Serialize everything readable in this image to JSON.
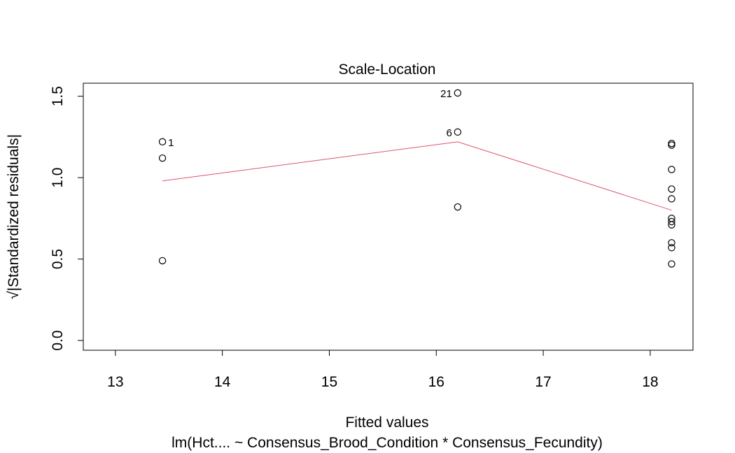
{
  "chart_data": {
    "type": "scatter",
    "title": "Scale-Location",
    "xlabel": "Fitted values",
    "subtitle": "lm(Hct.... ~ Consensus_Brood_Condition * Consensus_Fecundity)",
    "ylabel": "√|Standardized residuals|",
    "xlim": [
      12.7,
      18.4
    ],
    "ylim": [
      -0.06,
      1.58
    ],
    "x_ticks": [
      13,
      14,
      15,
      16,
      17,
      18
    ],
    "y_ticks": [
      0.0,
      0.5,
      1.0,
      1.5
    ],
    "y_tick_labels": [
      "0.0",
      "0.5",
      "1.0",
      "1.5"
    ],
    "points": [
      {
        "x": 13.44,
        "y": 1.22,
        "label": "1"
      },
      {
        "x": 13.44,
        "y": 1.12
      },
      {
        "x": 13.44,
        "y": 0.49
      },
      {
        "x": 16.2,
        "y": 1.52,
        "label": "21"
      },
      {
        "x": 16.2,
        "y": 1.28,
        "label": "6"
      },
      {
        "x": 16.2,
        "y": 0.82
      },
      {
        "x": 18.2,
        "y": 1.21
      },
      {
        "x": 18.2,
        "y": 1.2
      },
      {
        "x": 18.2,
        "y": 1.05
      },
      {
        "x": 18.2,
        "y": 0.93
      },
      {
        "x": 18.2,
        "y": 0.87
      },
      {
        "x": 18.2,
        "y": 0.75
      },
      {
        "x": 18.2,
        "y": 0.73
      },
      {
        "x": 18.2,
        "y": 0.71
      },
      {
        "x": 18.2,
        "y": 0.6
      },
      {
        "x": 18.2,
        "y": 0.57
      },
      {
        "x": 18.2,
        "y": 0.47
      }
    ],
    "smoother": {
      "color": "#DF536B",
      "x": [
        13.44,
        16.2,
        18.2
      ],
      "y": [
        0.98,
        1.22,
        0.8
      ]
    }
  }
}
